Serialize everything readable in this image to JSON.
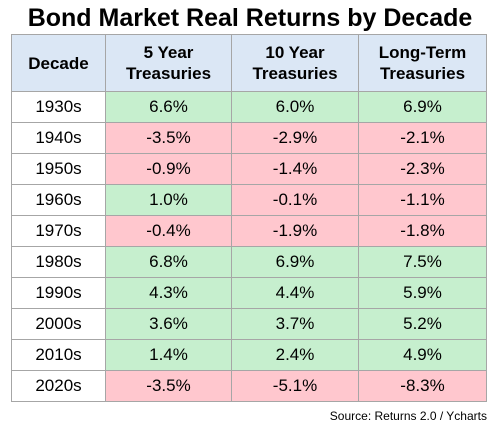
{
  "title": "Bond Market Real Returns by Decade",
  "source": "Source: Returns 2.0 / Ycharts",
  "colors": {
    "header_bg": "#dbe7f5",
    "positive_bg": "#c6efce",
    "positive_text": "#006100",
    "negative_bg": "#ffc7ce",
    "negative_text": "#9c0006",
    "border": "#a6a6a6"
  },
  "chart_data": {
    "type": "table",
    "title": "Bond Market Real Returns by Decade",
    "columns": [
      "Decade",
      "5 Year Treasuries",
      "10 Year Treasuries",
      "Long-Term Treasuries"
    ],
    "header_lines": [
      [
        "Decade"
      ],
      [
        "5 Year",
        "Treasuries"
      ],
      [
        "10 Year",
        "Treasuries"
      ],
      [
        "Long-Term",
        "Treasuries"
      ]
    ],
    "rows": [
      {
        "decade": "1930s",
        "values": [
          "6.6%",
          "6.0%",
          "6.9%"
        ]
      },
      {
        "decade": "1940s",
        "values": [
          "-3.5%",
          "-2.9%",
          "-2.1%"
        ]
      },
      {
        "decade": "1950s",
        "values": [
          "-0.9%",
          "-1.4%",
          "-2.3%"
        ]
      },
      {
        "decade": "1960s",
        "values": [
          "1.0%",
          "-0.1%",
          "-1.1%"
        ]
      },
      {
        "decade": "1970s",
        "values": [
          "-0.4%",
          "-1.9%",
          "-1.8%"
        ]
      },
      {
        "decade": "1980s",
        "values": [
          "6.8%",
          "6.9%",
          "7.5%"
        ]
      },
      {
        "decade": "1990s",
        "values": [
          "4.3%",
          "4.4%",
          "5.9%"
        ]
      },
      {
        "decade": "2000s",
        "values": [
          "3.6%",
          "3.7%",
          "5.2%"
        ]
      },
      {
        "decade": "2010s",
        "values": [
          "1.4%",
          "2.4%",
          "4.9%"
        ]
      },
      {
        "decade": "2020s",
        "values": [
          "-3.5%",
          "-5.1%",
          "-8.3%"
        ]
      }
    ]
  }
}
